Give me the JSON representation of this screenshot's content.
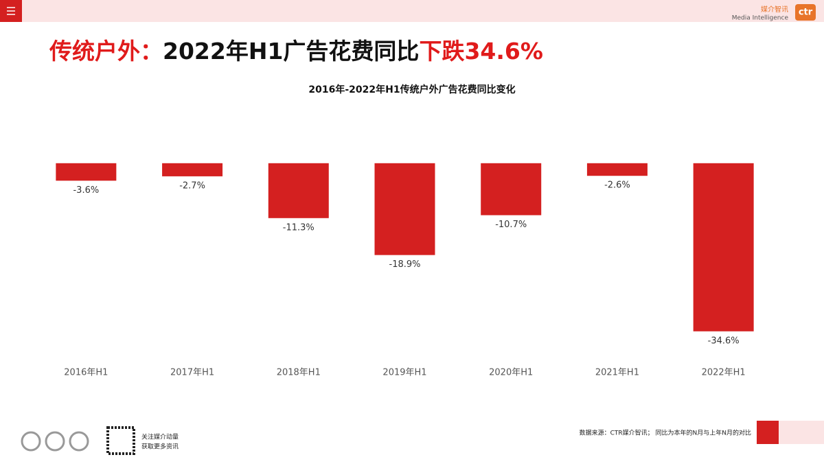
{
  "header": {
    "logo_cn": "媒介智讯",
    "logo_en": "Media Intelligence",
    "logo_mark": "ctr"
  },
  "slide_title": {
    "part1": "传统户外：",
    "part2": "2022年H1广告花费同比",
    "part3": "下跌34.6%"
  },
  "chart_data": {
    "type": "bar",
    "title": "2016年-2022年H1传统户外广告花费同比变化",
    "categories": [
      "2016年H1",
      "2017年H1",
      "2018年H1",
      "2019年H1",
      "2020年H1",
      "2021年H1",
      "2022年H1"
    ],
    "values": [
      -3.6,
      -2.7,
      -11.3,
      -18.9,
      -10.7,
      -2.6,
      -34.6
    ],
    "value_labels": [
      "-3.6%",
      "-2.7%",
      "-11.3%",
      "-18.9%",
      "-10.7%",
      "-2.6%",
      "-34.6%"
    ],
    "color": "#d42020",
    "ylim": [
      -40,
      10
    ]
  },
  "footer": {
    "qr_line1": "关注媒介动量",
    "qr_line2": "获取更多资讯",
    "source": "数据来源：CTR媒介智讯； 同比为本年的N月与上年N月的对比"
  }
}
